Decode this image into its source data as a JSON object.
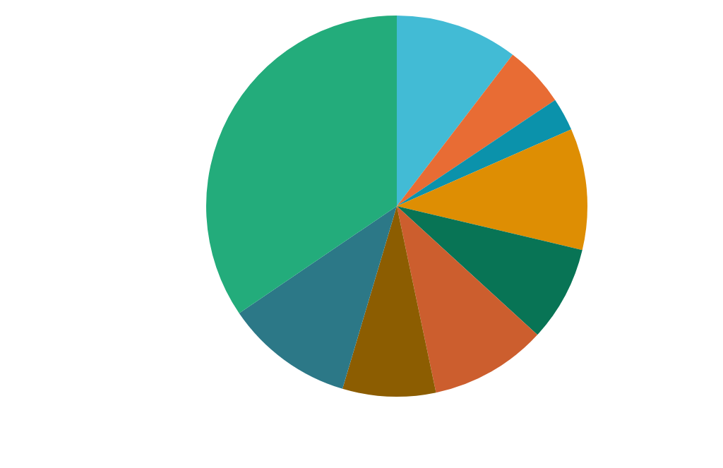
{
  "chart_data": {
    "type": "pie",
    "categories": [
      null,
      null,
      null,
      null,
      null,
      null,
      null,
      null,
      null
    ],
    "values": [
      10.4,
      5.2,
      2.8,
      10.3,
      8.1,
      9.9,
      7.9,
      10.9,
      34.5
    ],
    "colors": [
      "#42bbd5",
      "#e86c34",
      "#0b92ab",
      "#de8e03",
      "#087455",
      "#cc5e2e",
      "#8c5d01",
      "#2c7887",
      "#23ac7b"
    ]
  }
}
